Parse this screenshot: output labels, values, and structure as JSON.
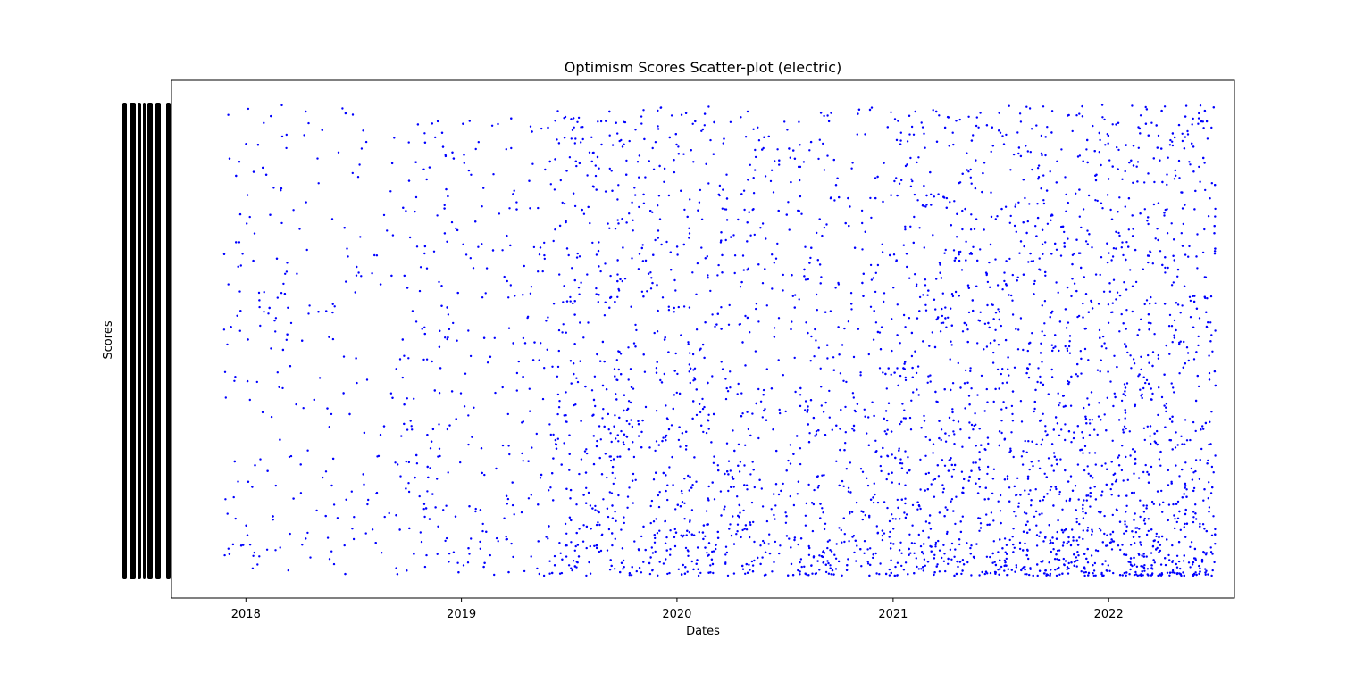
{
  "chart_data": {
    "type": "scatter",
    "title": "Optimism Scores Scatter-plot (electric)",
    "xlabel": "Dates",
    "ylabel": "Scores",
    "x_ticks": [
      "2018",
      "2019",
      "2020",
      "2021",
      "2022"
    ],
    "x_range": [
      "2017-08-28",
      "2022-08-02"
    ],
    "data_range": [
      "2017-11-25",
      "2022-07-01"
    ],
    "y_range": [
      0,
      1
    ],
    "y_tick_labels_visible": false,
    "grid": false,
    "legend": "none",
    "point_color": "#0000ff",
    "series": [
      {
        "density_by_year": [
          {
            "year": "2017-2018",
            "relative_density": 0.35
          },
          {
            "year": "2018-2019",
            "relative_density": 0.45
          },
          {
            "year": "2019-2020",
            "relative_density": 1.0
          },
          {
            "year": "2020-2021",
            "relative_density": 0.85
          },
          {
            "year": "2021-2022",
            "relative_density": 1.25
          },
          {
            "year": "2022",
            "relative_density": 1.5
          }
        ],
        "approx_point_count": 5000
      }
    ]
  }
}
